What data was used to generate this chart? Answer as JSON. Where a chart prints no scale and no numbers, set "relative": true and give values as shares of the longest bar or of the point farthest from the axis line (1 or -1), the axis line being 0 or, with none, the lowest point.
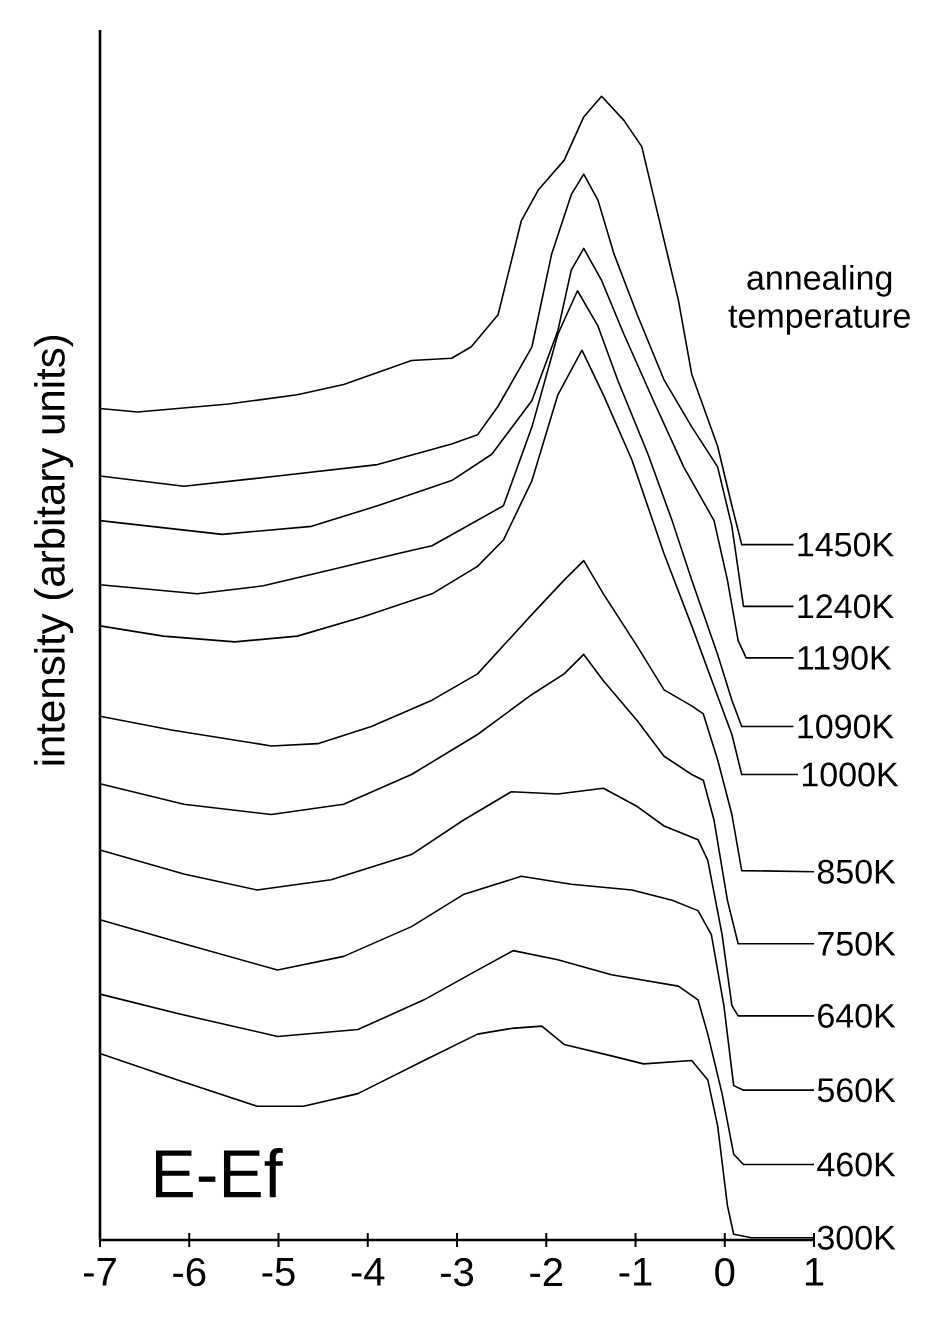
{
  "chart_data": {
    "type": "line",
    "relative": true,
    "xlabel": "E-Ef",
    "ylabel": "intensity (arbitary units)",
    "annotations": [
      "annealing temperature"
    ],
    "xlim": [
      -7,
      1
    ],
    "xticks": [
      -7,
      -6,
      -5,
      -4,
      -3,
      -2,
      -1,
      0,
      1
    ],
    "series": [
      {
        "name": "1450K",
        "color": "#000000",
        "x": [
          -7,
          -6.58,
          -6.13,
          -5.56,
          -4.79,
          -4.27,
          -3.51,
          -3.06,
          -2.84,
          -2.54,
          -2.28,
          -2.09,
          -1.8,
          -1.58,
          -1.38,
          -1.13,
          -0.93,
          -0.75,
          -0.52,
          -0.37,
          -0.08,
          0.08,
          0.19,
          0.77
        ],
        "values": [
          0.727,
          0.724,
          0.727,
          0.731,
          0.739,
          0.748,
          0.769,
          0.771,
          0.781,
          0.809,
          0.891,
          0.918,
          0.944,
          0.982,
          1.0,
          0.979,
          0.956,
          0.897,
          0.822,
          0.757,
          0.694,
          0.642,
          0.608,
          0.608
        ]
      },
      {
        "name": "1240K",
        "color": "#000000",
        "x": [
          -7,
          -6.06,
          -5.01,
          -3.89,
          -3.06,
          -2.77,
          -2.54,
          -2.16,
          -1.94,
          -1.72,
          -1.58,
          -1.42,
          -1.24,
          -0.98,
          -0.68,
          -0.37,
          -0.08,
          0.08,
          0.21,
          0.77
        ],
        "values": [
          0.668,
          0.659,
          0.668,
          0.678,
          0.696,
          0.704,
          0.729,
          0.781,
          0.862,
          0.914,
          0.932,
          0.909,
          0.862,
          0.809,
          0.752,
          0.711,
          0.676,
          0.624,
          0.554,
          0.554
        ]
      },
      {
        "name": "1190K",
        "color": "#000000",
        "x": [
          -7,
          -5.63,
          -4.63,
          -3.89,
          -3.06,
          -2.61,
          -2.16,
          -1.87,
          -1.72,
          -1.58,
          -1.38,
          -1.13,
          -0.8,
          -0.46,
          -0.12,
          0.03,
          0.15,
          0.24,
          0.77
        ],
        "values": [
          0.629,
          0.617,
          0.624,
          0.642,
          0.664,
          0.687,
          0.734,
          0.795,
          0.848,
          0.867,
          0.839,
          0.792,
          0.734,
          0.676,
          0.629,
          0.577,
          0.524,
          0.509,
          0.509
        ]
      },
      {
        "name": "1090K",
        "color": "#000000",
        "x": [
          -7,
          -5.91,
          -5.17,
          -4.41,
          -3.67,
          -3.28,
          -2.48,
          -2.16,
          -1.87,
          -1.65,
          -1.42,
          -1.2,
          -0.86,
          -0.59,
          -0.37,
          -0.08,
          0.08,
          0.19,
          0.77
        ],
        "values": [
          0.573,
          0.565,
          0.572,
          0.586,
          0.6,
          0.607,
          0.642,
          0.711,
          0.792,
          0.83,
          0.799,
          0.752,
          0.687,
          0.629,
          0.577,
          0.512,
          0.472,
          0.449,
          0.449
        ]
      },
      {
        "name": "1000K",
        "color": "#000000",
        "x": [
          -7,
          -6.29,
          -5.49,
          -4.79,
          -4.05,
          -3.28,
          -2.77,
          -2.48,
          -2.16,
          -1.87,
          -1.6,
          -1.36,
          -1.04,
          -0.68,
          -0.37,
          -0.12,
          0.08,
          0.19,
          0.82
        ],
        "values": [
          0.537,
          0.528,
          0.523,
          0.528,
          0.545,
          0.565,
          0.589,
          0.612,
          0.664,
          0.739,
          0.778,
          0.739,
          0.682,
          0.6,
          0.537,
          0.484,
          0.442,
          0.407,
          0.407
        ]
      },
      {
        "name": "850K",
        "color": "#000000",
        "x": [
          -7,
          -6.2,
          -5.08,
          -4.56,
          -3.96,
          -3.28,
          -2.77,
          -2.16,
          -1.8,
          -1.58,
          -1.36,
          -0.98,
          -0.68,
          -0.37,
          -0.24,
          -0.08,
          0.08,
          0.19,
          1.0
        ],
        "values": [
          0.458,
          0.446,
          0.432,
          0.434,
          0.449,
          0.472,
          0.495,
          0.547,
          0.577,
          0.594,
          0.565,
          0.519,
          0.481,
          0.467,
          0.46,
          0.42,
          0.372,
          0.323,
          0.322
        ]
      },
      {
        "name": "750K",
        "color": "#000000",
        "x": [
          -7,
          -6.06,
          -5.08,
          -4.27,
          -3.51,
          -2.77,
          -2.16,
          -1.8,
          -1.58,
          -1.36,
          -0.98,
          -0.68,
          -0.37,
          -0.24,
          -0.12,
          0.03,
          0.15,
          1.0
        ],
        "values": [
          0.399,
          0.381,
          0.372,
          0.381,
          0.407,
          0.442,
          0.477,
          0.495,
          0.512,
          0.489,
          0.454,
          0.423,
          0.407,
          0.402,
          0.367,
          0.297,
          0.259,
          0.259
        ]
      },
      {
        "name": "640K",
        "color": "#000000",
        "x": [
          -7,
          -6.06,
          -5.24,
          -4.41,
          -3.51,
          -2.93,
          -2.39,
          -1.87,
          -1.36,
          -0.98,
          -0.68,
          -0.3,
          -0.19,
          -0.03,
          0.08,
          0.15,
          1.0
        ],
        "values": [
          0.341,
          0.32,
          0.306,
          0.315,
          0.337,
          0.367,
          0.392,
          0.39,
          0.395,
          0.379,
          0.362,
          0.35,
          0.332,
          0.267,
          0.205,
          0.196,
          0.196
        ]
      },
      {
        "name": "560K",
        "color": "#000000",
        "x": [
          -7,
          -6.06,
          -5.01,
          -4.27,
          -3.51,
          -2.93,
          -2.28,
          -1.72,
          -1.04,
          -0.59,
          -0.3,
          -0.15,
          -0.01,
          0.1,
          0.21,
          1.0
        ],
        "values": [
          0.28,
          0.259,
          0.236,
          0.248,
          0.274,
          0.302,
          0.318,
          0.311,
          0.306,
          0.297,
          0.288,
          0.267,
          0.205,
          0.135,
          0.131,
          0.131
        ]
      },
      {
        "name": "460K",
        "color": "#000000",
        "x": [
          -7,
          -6.13,
          -5.01,
          -4.11,
          -3.37,
          -2.77,
          -2.37,
          -1.87,
          -1.27,
          -0.52,
          -0.3,
          -0.19,
          -0.03,
          0.1,
          0.21,
          1.0
        ],
        "values": [
          0.215,
          0.198,
          0.178,
          0.184,
          0.21,
          0.236,
          0.253,
          0.245,
          0.232,
          0.222,
          0.21,
          0.18,
          0.128,
          0.075,
          0.066,
          0.066
        ]
      },
      {
        "name": "300K",
        "color": "#000000",
        "x": [
          -7,
          -6.13,
          -5.24,
          -4.72,
          -4.11,
          -3.37,
          -2.77,
          -2.39,
          -2.05,
          -1.8,
          -1.27,
          -0.91,
          -0.37,
          -0.19,
          -0.08,
          0.03,
          0.1,
          0.3,
          1.0
        ],
        "values": [
          0.163,
          0.14,
          0.117,
          0.117,
          0.128,
          0.157,
          0.18,
          0.185,
          0.187,
          0.171,
          0.161,
          0.154,
          0.157,
          0.14,
          0.1,
          0.03,
          0.005,
          0.002,
          0.002
        ]
      }
    ]
  }
}
